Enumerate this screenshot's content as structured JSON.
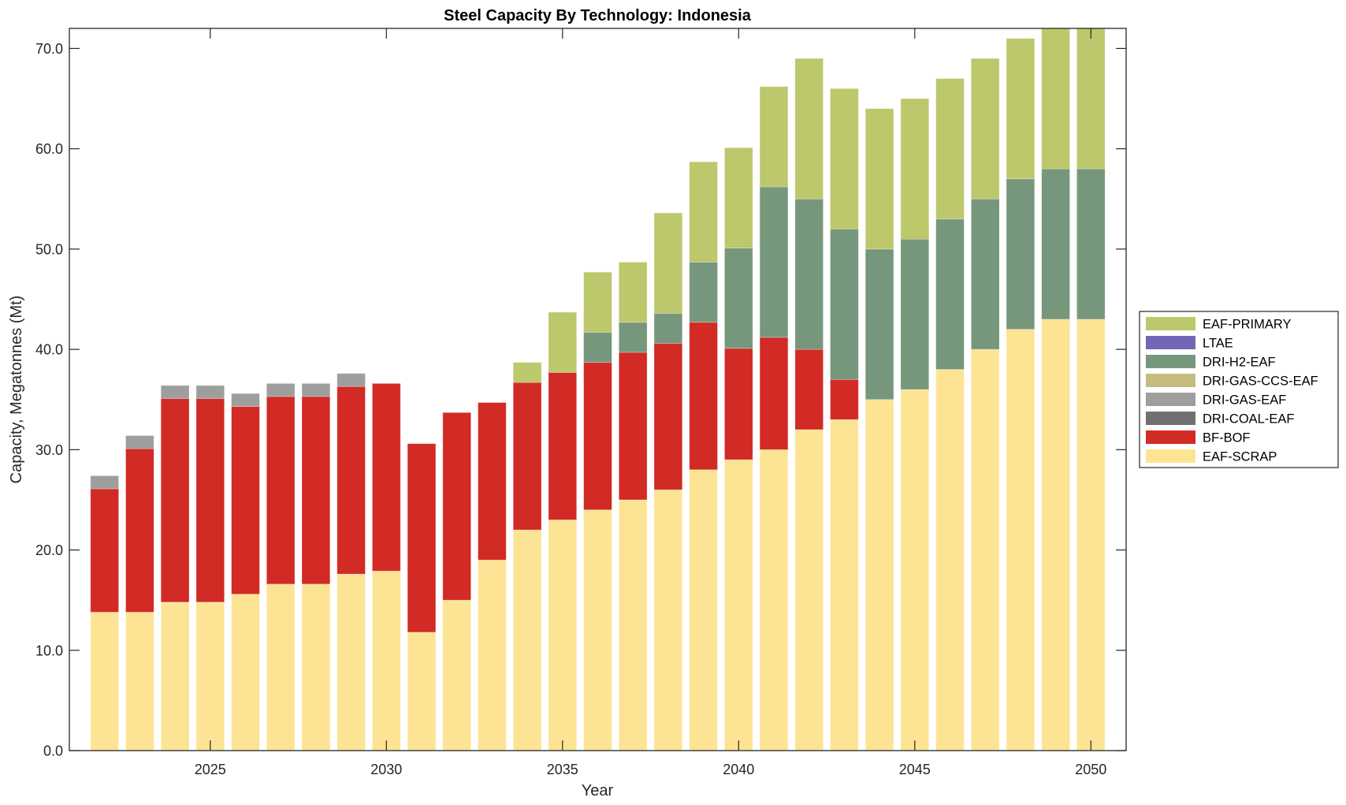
{
  "chart_data": {
    "type": "bar",
    "stacked": true,
    "title": "Steel Capacity By Technology: Indonesia",
    "xlabel": "Year",
    "ylabel": "Capacity, Megatonnes (Mt)",
    "xlim": [
      2021,
      2051
    ],
    "ylim": [
      0,
      72
    ],
    "xticks": [
      2025,
      2030,
      2035,
      2040,
      2045,
      2050
    ],
    "xtick_labels": [
      "2025",
      "2030",
      "2035",
      "2040",
      "2045",
      "2050"
    ],
    "yticks": [
      0,
      10,
      20,
      30,
      40,
      50,
      60,
      70
    ],
    "ytick_labels": [
      "0.0",
      "10.0",
      "20.0",
      "30.0",
      "40.0",
      "50.0",
      "60.0",
      "70.0"
    ],
    "grid": false,
    "legend_position": "outside-right",
    "categories": [
      2022,
      2023,
      2024,
      2025,
      2026,
      2027,
      2028,
      2029,
      2030,
      2031,
      2032,
      2033,
      2034,
      2035,
      2036,
      2037,
      2038,
      2039,
      2040,
      2041,
      2042,
      2043,
      2044,
      2045,
      2046,
      2047,
      2048,
      2049,
      2050
    ],
    "series": [
      {
        "name": "EAF-SCRAP",
        "color": "#FDE494",
        "values": [
          13.8,
          13.8,
          14.8,
          14.8,
          15.6,
          16.6,
          16.6,
          17.6,
          17.9,
          11.8,
          15.0,
          19.0,
          22.0,
          23.0,
          24.0,
          25.0,
          26.0,
          28.0,
          29.0,
          30.0,
          32.0,
          33.0,
          35.0,
          36.0,
          38.0,
          40.0,
          42.0,
          43.0,
          43.0
        ]
      },
      {
        "name": "BF-BOF",
        "color": "#D22A25",
        "values": [
          12.3,
          16.3,
          20.3,
          20.3,
          18.7,
          18.7,
          18.7,
          18.7,
          18.7,
          18.8,
          18.7,
          15.7,
          14.7,
          14.7,
          14.7,
          14.7,
          14.6,
          14.7,
          11.1,
          11.2,
          8.0,
          4.0,
          0,
          0,
          0,
          0,
          0,
          0,
          0
        ]
      },
      {
        "name": "DRI-COAL-EAF",
        "color": "#707070",
        "values": [
          0,
          0,
          0,
          0,
          0,
          0,
          0,
          0,
          0,
          0,
          0,
          0,
          0,
          0,
          0,
          0,
          0,
          0,
          0,
          0,
          0,
          0,
          0,
          0,
          0,
          0,
          0,
          0,
          0
        ]
      },
      {
        "name": "DRI-GAS-EAF",
        "color": "#9E9E9C",
        "values": [
          1.3,
          1.3,
          1.3,
          1.3,
          1.3,
          1.3,
          1.3,
          1.3,
          0,
          0,
          0,
          0,
          0,
          0,
          0,
          0,
          0,
          0,
          0,
          0,
          0,
          0,
          0,
          0,
          0,
          0,
          0,
          0,
          0
        ]
      },
      {
        "name": "DRI-GAS-CCS-EAF",
        "color": "#C4BC7E",
        "values": [
          0,
          0,
          0,
          0,
          0,
          0,
          0,
          0,
          0,
          0,
          0,
          0,
          0,
          0,
          0,
          0,
          0,
          0,
          0,
          0,
          0,
          0,
          0,
          0,
          0,
          0,
          0,
          0,
          0
        ]
      },
      {
        "name": "DRI-H2-EAF",
        "color": "#76977C",
        "values": [
          0,
          0,
          0,
          0,
          0,
          0,
          0,
          0,
          0,
          0,
          0,
          0,
          0,
          0,
          3.0,
          3.0,
          3.0,
          6.0,
          10.0,
          15.0,
          15.0,
          15.0,
          15.0,
          15.0,
          15.0,
          15.0,
          15.0,
          15.0,
          15.0
        ]
      },
      {
        "name": "LTAE",
        "color": "#7367B5",
        "values": [
          0,
          0,
          0,
          0,
          0,
          0,
          0,
          0,
          0,
          0,
          0,
          0,
          0,
          0,
          0,
          0,
          0,
          0,
          0,
          0,
          0,
          0,
          0,
          0,
          0,
          0,
          0,
          0,
          0
        ]
      },
      {
        "name": "EAF-PRIMARY",
        "color": "#BDC76B",
        "values": [
          0,
          0,
          0,
          0,
          0,
          0,
          0,
          0,
          0,
          0,
          0,
          0,
          2.0,
          6.0,
          6.0,
          6.0,
          10.0,
          10.0,
          10.0,
          10.0,
          14.0,
          14.0,
          14.0,
          14.0,
          14.0,
          14.0,
          14.0,
          15.0,
          15.0
        ]
      }
    ],
    "legend_entries": [
      "EAF-PRIMARY",
      "LTAE",
      "DRI-H2-EAF",
      "DRI-GAS-CCS-EAF",
      "DRI-GAS-EAF",
      "DRI-COAL-EAF",
      "BF-BOF",
      "EAF-SCRAP"
    ]
  }
}
